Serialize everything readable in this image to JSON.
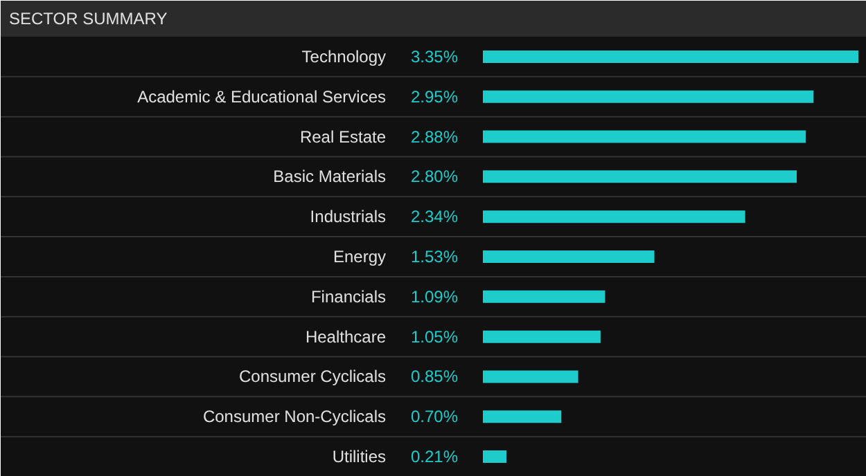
{
  "chart_data": {
    "type": "bar",
    "orientation": "horizontal",
    "title": "SECTOR SUMMARY",
    "categories": [
      "Technology",
      "Academic & Educational Services",
      "Real Estate",
      "Basic Materials",
      "Industrials",
      "Energy",
      "Financials",
      "Healthcare",
      "Consumer Cyclicals",
      "Consumer Non-Cyclicals",
      "Utilities"
    ],
    "values": [
      3.35,
      2.95,
      2.88,
      2.8,
      2.34,
      1.53,
      1.09,
      1.05,
      0.85,
      0.7,
      0.21
    ],
    "value_labels": [
      "3.35%",
      "2.95%",
      "2.88%",
      "2.80%",
      "2.34%",
      "1.53%",
      "1.09%",
      "1.05%",
      "0.85%",
      "0.70%",
      "0.21%"
    ],
    "color": "#1ecccc"
  }
}
